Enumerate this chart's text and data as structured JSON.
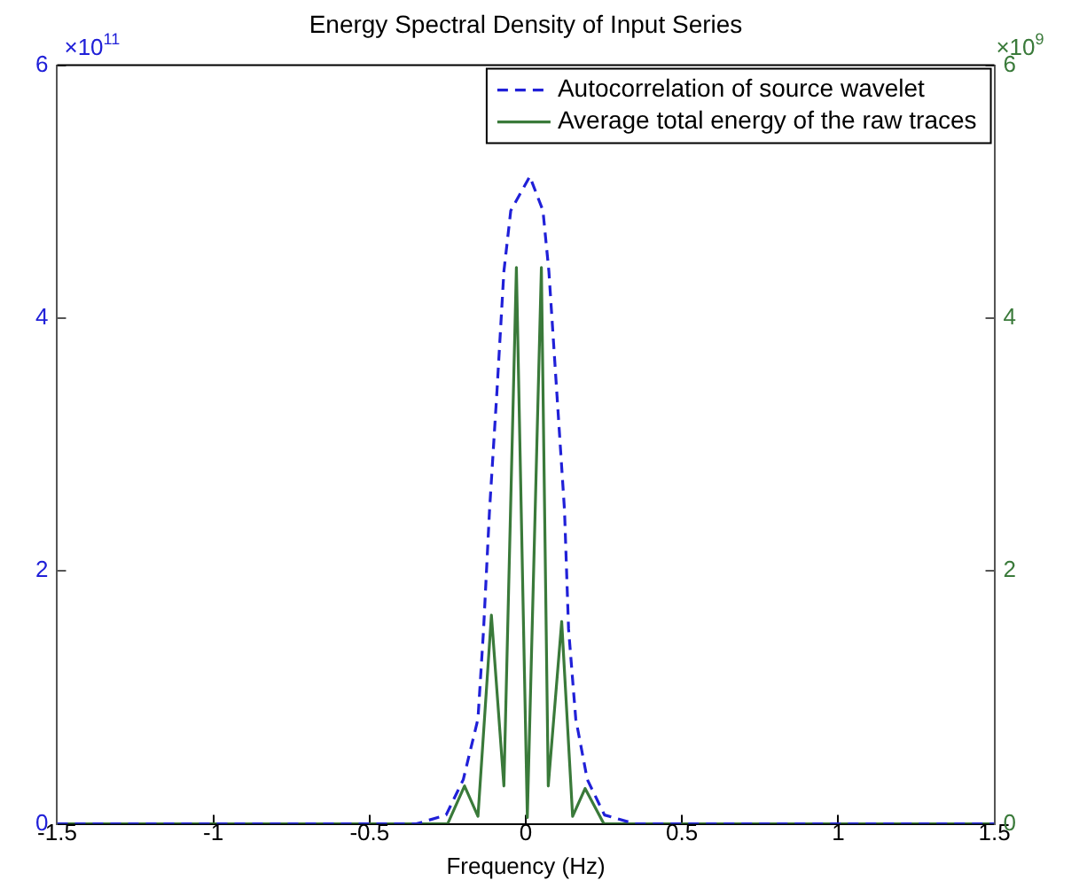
{
  "chart_data": {
    "type": "line",
    "title": "Energy Spectral Density of Input Series",
    "xlabel": "Frequency (Hz)",
    "xlim": [
      -1.5,
      1.5
    ],
    "xticks": [
      -1.5,
      -1,
      -0.5,
      0,
      0.5,
      1,
      1.5
    ],
    "ylim": [
      0,
      6
    ],
    "yticks": [
      0,
      2,
      4,
      6
    ],
    "y2lim": [
      0,
      6
    ],
    "y2ticks": [
      0,
      2,
      4,
      6
    ],
    "annotations": [
      "×10$^{11}$",
      "×10$^{9}$"
    ],
    "grid": false,
    "legend": "top right",
    "series": [
      {
        "name": "Autocorrelation of source wavelet",
        "color": "#2020d8",
        "line_style": "dashed",
        "axis": "y",
        "x": [
          -1.5,
          -0.35,
          -0.255,
          -0.2,
          -0.153,
          -0.135,
          -0.116,
          -0.092,
          -0.07,
          -0.048,
          0.013,
          0.055,
          0.074,
          0.124,
          0.137,
          0.16,
          0.197,
          0.252,
          0.35,
          1.5
        ],
        "values": [
          0,
          0,
          0.07,
          0.35,
          0.83,
          1.54,
          2.48,
          3.43,
          4.37,
          4.85,
          5.12,
          4.85,
          4.37,
          2.48,
          1.54,
          0.83,
          0.35,
          0.07,
          0,
          0
        ]
      },
      {
        "name": "Average total energy of the raw traces",
        "color": "#3a7a3a",
        "line_style": "solid",
        "axis": "y2",
        "x": [
          -1.5,
          -0.25,
          -0.196,
          -0.153,
          -0.11,
          -0.07,
          -0.03,
          0.005,
          0.05,
          0.072,
          0.115,
          0.15,
          0.19,
          0.25,
          1.5
        ],
        "values": [
          0,
          0,
          0.3,
          0.06,
          1.65,
          0.3,
          4.4,
          0.05,
          4.4,
          0.3,
          1.6,
          0.06,
          0.28,
          0,
          0
        ]
      }
    ]
  }
}
